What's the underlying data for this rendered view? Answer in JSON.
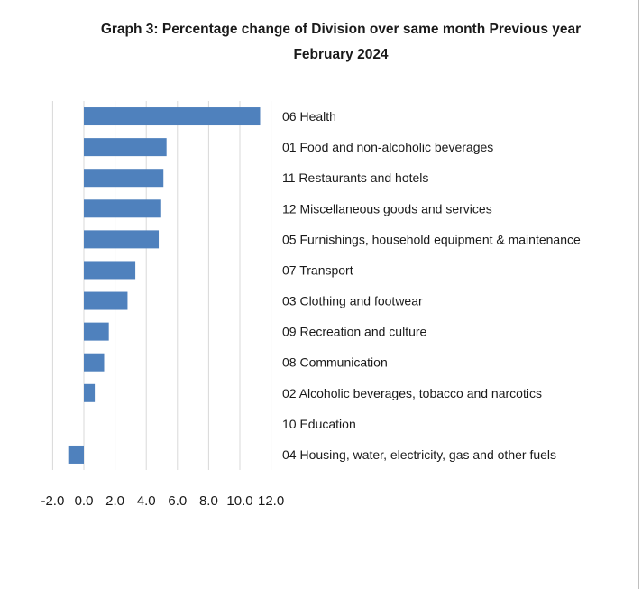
{
  "chart_data": {
    "type": "bar",
    "orientation": "horizontal",
    "title_line1": "Graph 3: Percentage change of Division over same month  Previous year",
    "title_line2": "February 2024",
    "categories": [
      "06 Health",
      "01 Food and non-alcoholic beverages",
      "11 Restaurants and hotels",
      "12 Miscellaneous goods and services",
      "05 Furnishings, household equipment & maintenance",
      "07 Transport",
      "03 Clothing and footwear",
      "09 Recreation and culture",
      "08 Communication",
      "02 Alcoholic beverages, tobacco and narcotics",
      "10 Education",
      "04 Housing, water, electricity, gas and other fuels"
    ],
    "values": [
      11.3,
      5.3,
      5.1,
      4.9,
      4.8,
      3.3,
      2.8,
      1.6,
      1.3,
      0.7,
      0.0,
      -1.0
    ],
    "xlim": [
      -2.0,
      12.0
    ],
    "xticks": [
      "-2.0",
      "0.0",
      "2.0",
      "4.0",
      "6.0",
      "8.0",
      "10.0",
      "12.0"
    ],
    "xtick_values": [
      -2,
      0,
      2,
      4,
      6,
      8,
      10,
      12
    ],
    "bar_color": "#4f81bd",
    "grid_color": "#d9d9d9",
    "grid": true,
    "legend": "none"
  }
}
